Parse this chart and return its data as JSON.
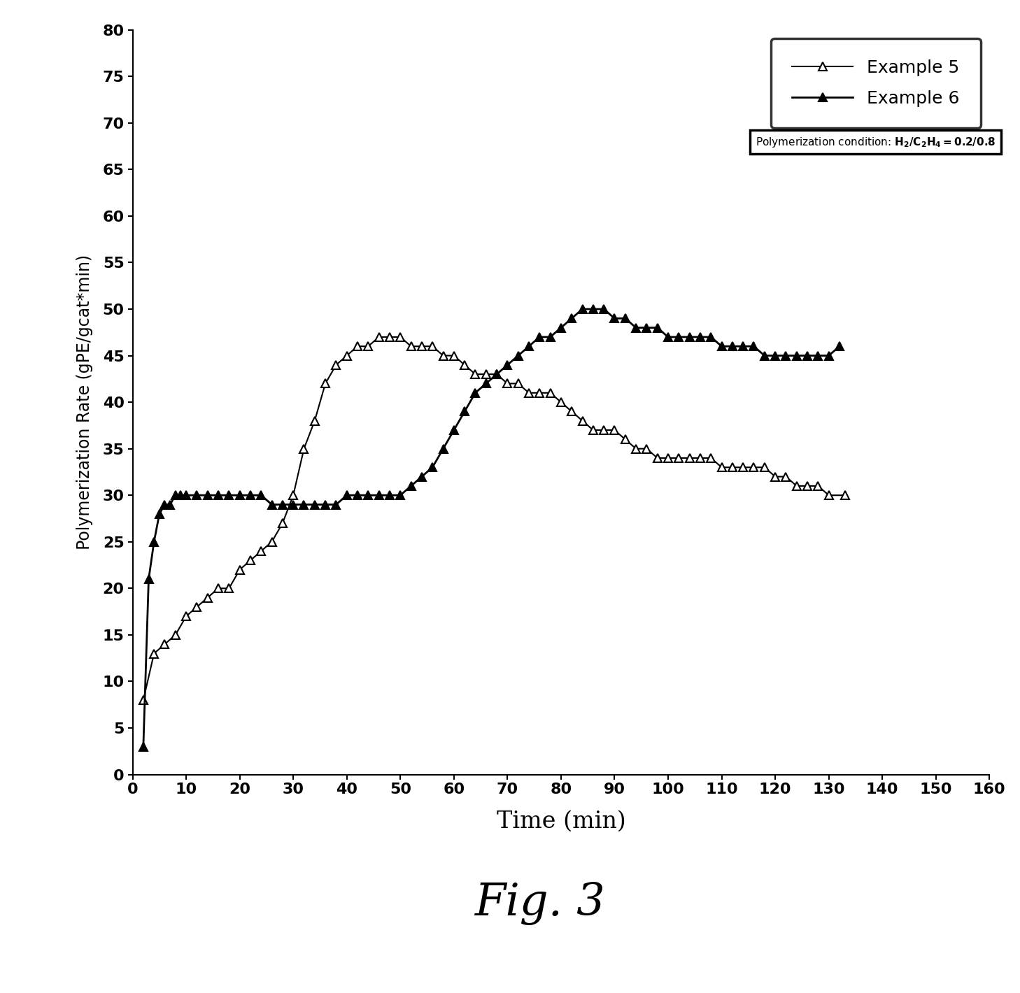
{
  "example5_x": [
    2,
    4,
    6,
    8,
    10,
    12,
    14,
    16,
    18,
    20,
    22,
    24,
    26,
    28,
    30,
    32,
    34,
    36,
    38,
    40,
    42,
    44,
    46,
    48,
    50,
    52,
    54,
    56,
    58,
    60,
    62,
    64,
    66,
    68,
    70,
    72,
    74,
    76,
    78,
    80,
    82,
    84,
    86,
    88,
    90,
    92,
    94,
    96,
    98,
    100,
    102,
    104,
    106,
    108,
    110,
    112,
    114,
    116,
    118,
    120,
    122,
    124,
    126,
    128,
    130,
    133
  ],
  "example5_y": [
    8,
    13,
    14,
    15,
    17,
    18,
    19,
    20,
    20,
    22,
    23,
    24,
    25,
    27,
    30,
    35,
    38,
    42,
    44,
    45,
    46,
    46,
    47,
    47,
    47,
    46,
    46,
    46,
    45,
    45,
    44,
    43,
    43,
    43,
    42,
    42,
    41,
    41,
    41,
    40,
    39,
    38,
    37,
    37,
    37,
    36,
    35,
    35,
    34,
    34,
    34,
    34,
    34,
    34,
    33,
    33,
    33,
    33,
    33,
    32,
    32,
    31,
    31,
    31,
    30,
    30
  ],
  "example6_x": [
    2,
    3,
    4,
    5,
    6,
    7,
    8,
    9,
    10,
    12,
    14,
    16,
    18,
    20,
    22,
    24,
    26,
    28,
    30,
    32,
    34,
    36,
    38,
    40,
    42,
    44,
    46,
    48,
    50,
    52,
    54,
    56,
    58,
    60,
    62,
    64,
    66,
    68,
    70,
    72,
    74,
    76,
    78,
    80,
    82,
    84,
    86,
    88,
    90,
    92,
    94,
    96,
    98,
    100,
    102,
    104,
    106,
    108,
    110,
    112,
    114,
    116,
    118,
    120,
    122,
    124,
    126,
    128,
    130,
    132
  ],
  "example6_y": [
    3,
    21,
    25,
    28,
    29,
    29,
    30,
    30,
    30,
    30,
    30,
    30,
    30,
    30,
    30,
    30,
    29,
    29,
    29,
    29,
    29,
    29,
    29,
    30,
    30,
    30,
    30,
    30,
    30,
    31,
    32,
    33,
    35,
    37,
    39,
    41,
    42,
    43,
    44,
    45,
    46,
    47,
    47,
    48,
    49,
    50,
    50,
    50,
    49,
    49,
    48,
    48,
    48,
    47,
    47,
    47,
    47,
    47,
    46,
    46,
    46,
    46,
    45,
    45,
    45,
    45,
    45,
    45,
    45,
    46
  ],
  "xlabel": "Time (min)",
  "ylabel": "Polymerization Rate (gPE/gcat*min)",
  "xlim": [
    0,
    160
  ],
  "ylim": [
    0,
    80
  ],
  "xticks": [
    0,
    10,
    20,
    30,
    40,
    50,
    60,
    70,
    80,
    90,
    100,
    110,
    120,
    130,
    140,
    150,
    160
  ],
  "yticks": [
    0,
    5,
    10,
    15,
    20,
    25,
    30,
    35,
    40,
    45,
    50,
    55,
    60,
    65,
    70,
    75,
    80
  ],
  "legend_label5": "Example 5",
  "legend_label6": "Example 6",
  "fig_label": "Fig. 3",
  "background_color": "#ffffff",
  "line_color": "#000000"
}
